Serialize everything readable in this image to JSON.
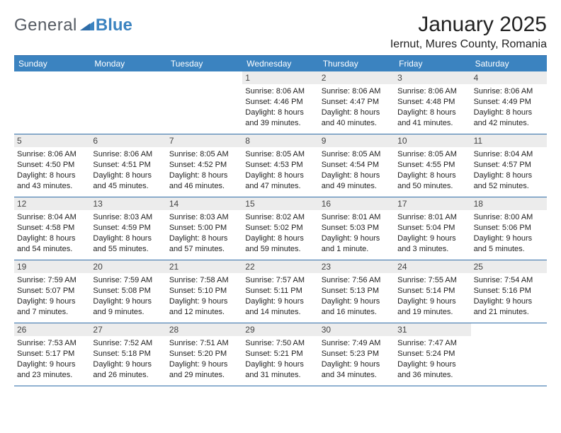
{
  "logo": {
    "general": "General",
    "blue": "Blue"
  },
  "header": {
    "title": "January 2025",
    "location": "Iernut, Mures County, Romania"
  },
  "daynames": [
    "Sunday",
    "Monday",
    "Tuesday",
    "Wednesday",
    "Thursday",
    "Friday",
    "Saturday"
  ],
  "colors": {
    "header_bg": "#3b83c0",
    "border": "#2e6ca8",
    "date_bg": "#ececec",
    "logo_gray": "#555b63",
    "logo_blue": "#3b83c0"
  },
  "weeks": [
    [
      {
        "date": "",
        "sunrise": "",
        "sunset": "",
        "daylight1": "",
        "daylight2": ""
      },
      {
        "date": "",
        "sunrise": "",
        "sunset": "",
        "daylight1": "",
        "daylight2": ""
      },
      {
        "date": "",
        "sunrise": "",
        "sunset": "",
        "daylight1": "",
        "daylight2": ""
      },
      {
        "date": "1",
        "sunrise": "Sunrise: 8:06 AM",
        "sunset": "Sunset: 4:46 PM",
        "daylight1": "Daylight: 8 hours",
        "daylight2": "and 39 minutes."
      },
      {
        "date": "2",
        "sunrise": "Sunrise: 8:06 AM",
        "sunset": "Sunset: 4:47 PM",
        "daylight1": "Daylight: 8 hours",
        "daylight2": "and 40 minutes."
      },
      {
        "date": "3",
        "sunrise": "Sunrise: 8:06 AM",
        "sunset": "Sunset: 4:48 PM",
        "daylight1": "Daylight: 8 hours",
        "daylight2": "and 41 minutes."
      },
      {
        "date": "4",
        "sunrise": "Sunrise: 8:06 AM",
        "sunset": "Sunset: 4:49 PM",
        "daylight1": "Daylight: 8 hours",
        "daylight2": "and 42 minutes."
      }
    ],
    [
      {
        "date": "5",
        "sunrise": "Sunrise: 8:06 AM",
        "sunset": "Sunset: 4:50 PM",
        "daylight1": "Daylight: 8 hours",
        "daylight2": "and 43 minutes."
      },
      {
        "date": "6",
        "sunrise": "Sunrise: 8:06 AM",
        "sunset": "Sunset: 4:51 PM",
        "daylight1": "Daylight: 8 hours",
        "daylight2": "and 45 minutes."
      },
      {
        "date": "7",
        "sunrise": "Sunrise: 8:05 AM",
        "sunset": "Sunset: 4:52 PM",
        "daylight1": "Daylight: 8 hours",
        "daylight2": "and 46 minutes."
      },
      {
        "date": "8",
        "sunrise": "Sunrise: 8:05 AM",
        "sunset": "Sunset: 4:53 PM",
        "daylight1": "Daylight: 8 hours",
        "daylight2": "and 47 minutes."
      },
      {
        "date": "9",
        "sunrise": "Sunrise: 8:05 AM",
        "sunset": "Sunset: 4:54 PM",
        "daylight1": "Daylight: 8 hours",
        "daylight2": "and 49 minutes."
      },
      {
        "date": "10",
        "sunrise": "Sunrise: 8:05 AM",
        "sunset": "Sunset: 4:55 PM",
        "daylight1": "Daylight: 8 hours",
        "daylight2": "and 50 minutes."
      },
      {
        "date": "11",
        "sunrise": "Sunrise: 8:04 AM",
        "sunset": "Sunset: 4:57 PM",
        "daylight1": "Daylight: 8 hours",
        "daylight2": "and 52 minutes."
      }
    ],
    [
      {
        "date": "12",
        "sunrise": "Sunrise: 8:04 AM",
        "sunset": "Sunset: 4:58 PM",
        "daylight1": "Daylight: 8 hours",
        "daylight2": "and 54 minutes."
      },
      {
        "date": "13",
        "sunrise": "Sunrise: 8:03 AM",
        "sunset": "Sunset: 4:59 PM",
        "daylight1": "Daylight: 8 hours",
        "daylight2": "and 55 minutes."
      },
      {
        "date": "14",
        "sunrise": "Sunrise: 8:03 AM",
        "sunset": "Sunset: 5:00 PM",
        "daylight1": "Daylight: 8 hours",
        "daylight2": "and 57 minutes."
      },
      {
        "date": "15",
        "sunrise": "Sunrise: 8:02 AM",
        "sunset": "Sunset: 5:02 PM",
        "daylight1": "Daylight: 8 hours",
        "daylight2": "and 59 minutes."
      },
      {
        "date": "16",
        "sunrise": "Sunrise: 8:01 AM",
        "sunset": "Sunset: 5:03 PM",
        "daylight1": "Daylight: 9 hours",
        "daylight2": "and 1 minute."
      },
      {
        "date": "17",
        "sunrise": "Sunrise: 8:01 AM",
        "sunset": "Sunset: 5:04 PM",
        "daylight1": "Daylight: 9 hours",
        "daylight2": "and 3 minutes."
      },
      {
        "date": "18",
        "sunrise": "Sunrise: 8:00 AM",
        "sunset": "Sunset: 5:06 PM",
        "daylight1": "Daylight: 9 hours",
        "daylight2": "and 5 minutes."
      }
    ],
    [
      {
        "date": "19",
        "sunrise": "Sunrise: 7:59 AM",
        "sunset": "Sunset: 5:07 PM",
        "daylight1": "Daylight: 9 hours",
        "daylight2": "and 7 minutes."
      },
      {
        "date": "20",
        "sunrise": "Sunrise: 7:59 AM",
        "sunset": "Sunset: 5:08 PM",
        "daylight1": "Daylight: 9 hours",
        "daylight2": "and 9 minutes."
      },
      {
        "date": "21",
        "sunrise": "Sunrise: 7:58 AM",
        "sunset": "Sunset: 5:10 PM",
        "daylight1": "Daylight: 9 hours",
        "daylight2": "and 12 minutes."
      },
      {
        "date": "22",
        "sunrise": "Sunrise: 7:57 AM",
        "sunset": "Sunset: 5:11 PM",
        "daylight1": "Daylight: 9 hours",
        "daylight2": "and 14 minutes."
      },
      {
        "date": "23",
        "sunrise": "Sunrise: 7:56 AM",
        "sunset": "Sunset: 5:13 PM",
        "daylight1": "Daylight: 9 hours",
        "daylight2": "and 16 minutes."
      },
      {
        "date": "24",
        "sunrise": "Sunrise: 7:55 AM",
        "sunset": "Sunset: 5:14 PM",
        "daylight1": "Daylight: 9 hours",
        "daylight2": "and 19 minutes."
      },
      {
        "date": "25",
        "sunrise": "Sunrise: 7:54 AM",
        "sunset": "Sunset: 5:16 PM",
        "daylight1": "Daylight: 9 hours",
        "daylight2": "and 21 minutes."
      }
    ],
    [
      {
        "date": "26",
        "sunrise": "Sunrise: 7:53 AM",
        "sunset": "Sunset: 5:17 PM",
        "daylight1": "Daylight: 9 hours",
        "daylight2": "and 23 minutes."
      },
      {
        "date": "27",
        "sunrise": "Sunrise: 7:52 AM",
        "sunset": "Sunset: 5:18 PM",
        "daylight1": "Daylight: 9 hours",
        "daylight2": "and 26 minutes."
      },
      {
        "date": "28",
        "sunrise": "Sunrise: 7:51 AM",
        "sunset": "Sunset: 5:20 PM",
        "daylight1": "Daylight: 9 hours",
        "daylight2": "and 29 minutes."
      },
      {
        "date": "29",
        "sunrise": "Sunrise: 7:50 AM",
        "sunset": "Sunset: 5:21 PM",
        "daylight1": "Daylight: 9 hours",
        "daylight2": "and 31 minutes."
      },
      {
        "date": "30",
        "sunrise": "Sunrise: 7:49 AM",
        "sunset": "Sunset: 5:23 PM",
        "daylight1": "Daylight: 9 hours",
        "daylight2": "and 34 minutes."
      },
      {
        "date": "31",
        "sunrise": "Sunrise: 7:47 AM",
        "sunset": "Sunset: 5:24 PM",
        "daylight1": "Daylight: 9 hours",
        "daylight2": "and 36 minutes."
      },
      {
        "date": "",
        "sunrise": "",
        "sunset": "",
        "daylight1": "",
        "daylight2": ""
      }
    ]
  ]
}
